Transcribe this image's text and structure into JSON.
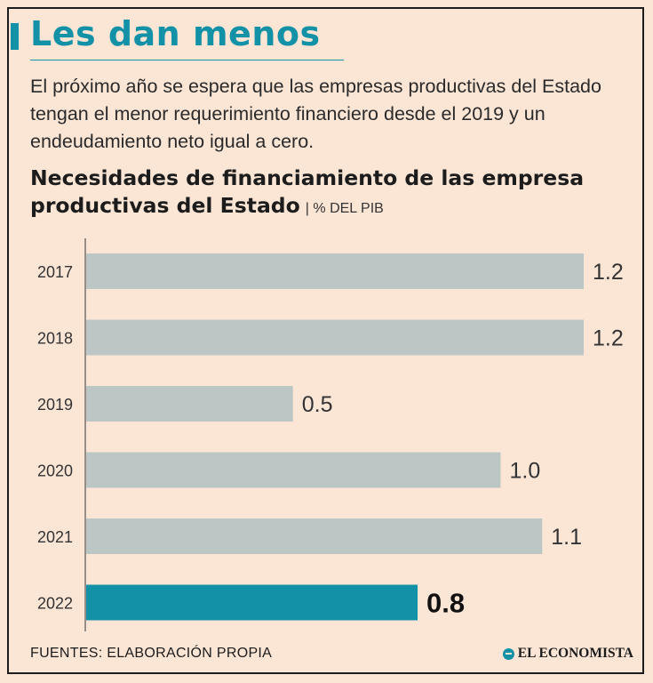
{
  "header": {
    "title": "Les dan menos",
    "subtitle": "El próximo año se espera que las empresas productivas del Estado tengan el menor requerimiento financiero desde el 2019 y un endeudamiento neto igual a cero."
  },
  "chart_data": {
    "type": "bar",
    "orientation": "horizontal",
    "title": "Necesidades de financiamiento de las empresa productivas del Estado",
    "unit": "% DEL PIB",
    "categories": [
      "2017",
      "2018",
      "2019",
      "2020",
      "2021",
      "2022"
    ],
    "values": [
      1.2,
      1.2,
      0.5,
      1.0,
      1.1,
      0.8
    ],
    "value_labels": [
      "1.2",
      "1.2",
      "0.5",
      "1.0",
      "1.1",
      "0.8"
    ],
    "highlight_index": 5,
    "xlim": [
      0,
      1.2
    ],
    "colors": {
      "bar": "#bcc7c5",
      "highlight": "#1391a6",
      "axis": "#555555"
    }
  },
  "footer": {
    "source": "FUENTES: ELABORACIÓN PROPIA",
    "brand": "EL ECONOMISTA"
  }
}
